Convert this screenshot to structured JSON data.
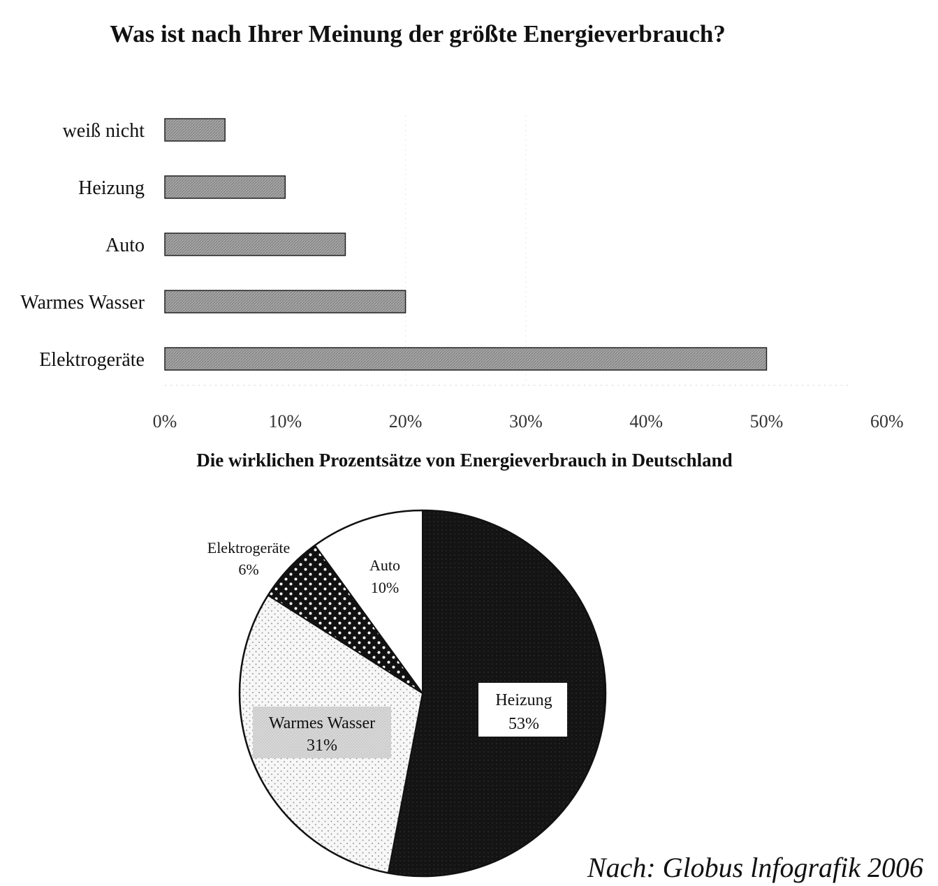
{
  "chart_data": [
    {
      "type": "bar",
      "orientation": "horizontal",
      "title": "Was ist nach Ihrer Meinung der größte Energieverbrauch?",
      "categories": [
        "weiß nicht",
        "Heizung",
        "Auto",
        "Warmes Wasser",
        "Elektrogeräte"
      ],
      "values": [
        5,
        10,
        15,
        20,
        50
      ],
      "unit": "%",
      "xlim": [
        0,
        60
      ],
      "xticks": [
        "0%",
        "10%",
        "20%",
        "30%",
        "40%",
        "50%",
        "60%"
      ],
      "grid": "vertical dotted",
      "bar_color": "#9a9a9a"
    },
    {
      "type": "pie",
      "title": "Die wirklichen Prozentsätze von Energieverbrauch in Deutschland",
      "slices": [
        {
          "label": "Heizung",
          "value": 53,
          "value_label": "53%",
          "fill": "#141414",
          "pattern": "dark"
        },
        {
          "label": "Warmes Wasser",
          "value": 31,
          "value_label": "31%",
          "fill": "#f2f2f2",
          "pattern": "light-dots"
        },
        {
          "label": "Elektrogeräte",
          "value": 6,
          "value_label": "6%",
          "fill": "#111111",
          "pattern": "white-dots"
        },
        {
          "label": "Auto",
          "value": 10,
          "value_label": "10%",
          "fill": "#ffffff",
          "pattern": "none"
        }
      ]
    }
  ],
  "source": "Nach: Globus lnfografik 2006"
}
